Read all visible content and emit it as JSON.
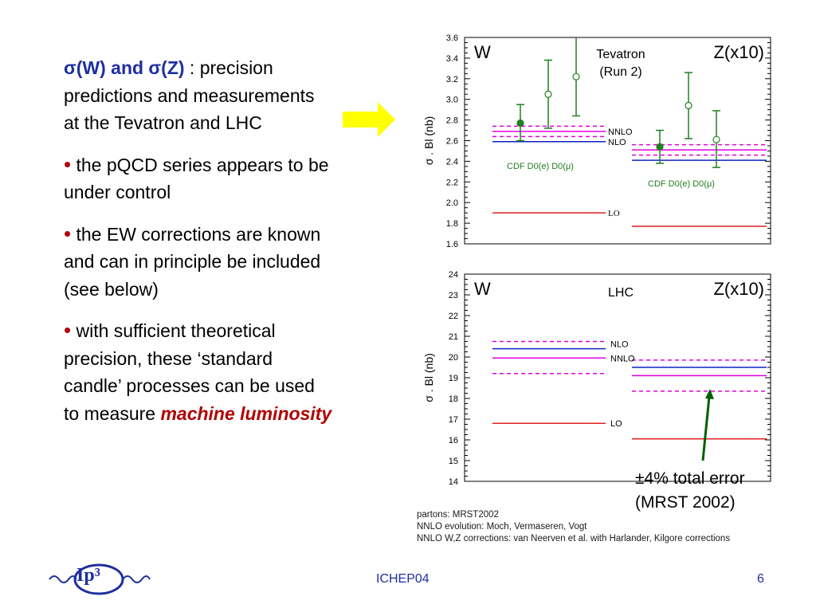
{
  "left": {
    "title_bold": "σ(W) and σ(Z)",
    "title_rest": " : precision predictions and measurements at the Tevatron and LHC",
    "bullets": [
      "the pQCD series appears to be under control",
      "the EW corrections are known and can in principle be included (see below)",
      "with sufficient theoretical precision, these ‘standard candle’ processes can be used to measure "
    ],
    "emphasis": "machine luminosity",
    "bullet_symbol": "•"
  },
  "annotation": {
    "error_symbol": "±",
    "error_text": "4% total error",
    "source": "(MRST 2002)"
  },
  "notes": [
    "partons: MRST2002",
    "NNLO evolution: Moch, Vermaseren, Vogt",
    "NNLO W,Z corrections: van Neerven et al. with Harlander, Kilgore corrections"
  ],
  "footer": {
    "center": "ICHEP04",
    "page": "6",
    "logo": "Ip³"
  },
  "colors": {
    "nnlo": "#e000e0",
    "nlo": "#1020c0",
    "lo": "#e02020",
    "data": "#208020",
    "arrow_fill": "#ffff00",
    "annotation_arrow": "#006000",
    "title_blue": "#1f2fa0",
    "emphasis_red": "#b00000"
  },
  "chart_data": [
    {
      "type": "scatter",
      "title": "Tevatron (Run 2)",
      "left_label": "W",
      "right_label": "Z(x10)",
      "ylabel": "σ . Bl (nb)",
      "ylim": [
        1.6,
        3.6
      ],
      "yticks": [
        "1.6",
        "1.8",
        "2.0",
        "2.2",
        "2.4",
        "2.6",
        "2.8",
        "3.0",
        "3.2",
        "3.4",
        "3.6"
      ],
      "theory": {
        "W": {
          "NNLO": 2.69,
          "NNLO_band": [
            2.64,
            2.74
          ],
          "NLO": 2.59,
          "LO": 1.9
        },
        "Z": {
          "NNLO": 2.51,
          "NNLO_band": [
            2.46,
            2.56
          ],
          "NLO": 2.41,
          "LO": 1.77
        }
      },
      "theory_labels": [
        "NNLO",
        "NLO",
        "LO"
      ],
      "measurements": {
        "W": [
          {
            "name": "CDF",
            "value": 2.77,
            "err": [
              2.6,
              2.95
            ],
            "filled": true
          },
          {
            "name": "D0(e)",
            "value": 3.05,
            "err": [
              2.72,
              3.38
            ],
            "filled": false
          },
          {
            "name": "D0(μ)",
            "value": 3.22,
            "err": [
              2.84,
              3.6
            ],
            "filled": false
          }
        ],
        "Z": [
          {
            "name": "CDF",
            "value": 2.54,
            "err": [
              2.38,
              2.7
            ],
            "filled": true
          },
          {
            "name": "D0(e)",
            "value": 2.94,
            "err": [
              2.62,
              3.26
            ],
            "filled": false
          },
          {
            "name": "D0(μ)",
            "value": 2.61,
            "err": [
              2.34,
              2.89
            ],
            "filled": false
          }
        ]
      },
      "experiment_labels": {
        "W": "CDF D0(e) D0(μ)",
        "Z": "CDF D0(e) D0(μ)"
      }
    },
    {
      "type": "line",
      "title": "LHC",
      "left_label": "W",
      "right_label": "Z(x10)",
      "ylabel": "σ . Bl (nb)",
      "ylim": [
        14,
        24
      ],
      "yticks": [
        "14",
        "15",
        "16",
        "17",
        "18",
        "19",
        "20",
        "21",
        "22",
        "23",
        "24"
      ],
      "theory": {
        "W": {
          "NLO": 20.4,
          "NNLO": 19.95,
          "NNLO_band": [
            19.2,
            20.75
          ],
          "LO": 16.8
        },
        "Z": {
          "NLO": 19.5,
          "NNLO": 19.1,
          "NNLO_band": [
            18.35,
            19.85
          ],
          "LO": 16.05
        }
      },
      "theory_labels": [
        "NLO",
        "NNLO",
        "LO"
      ]
    }
  ]
}
